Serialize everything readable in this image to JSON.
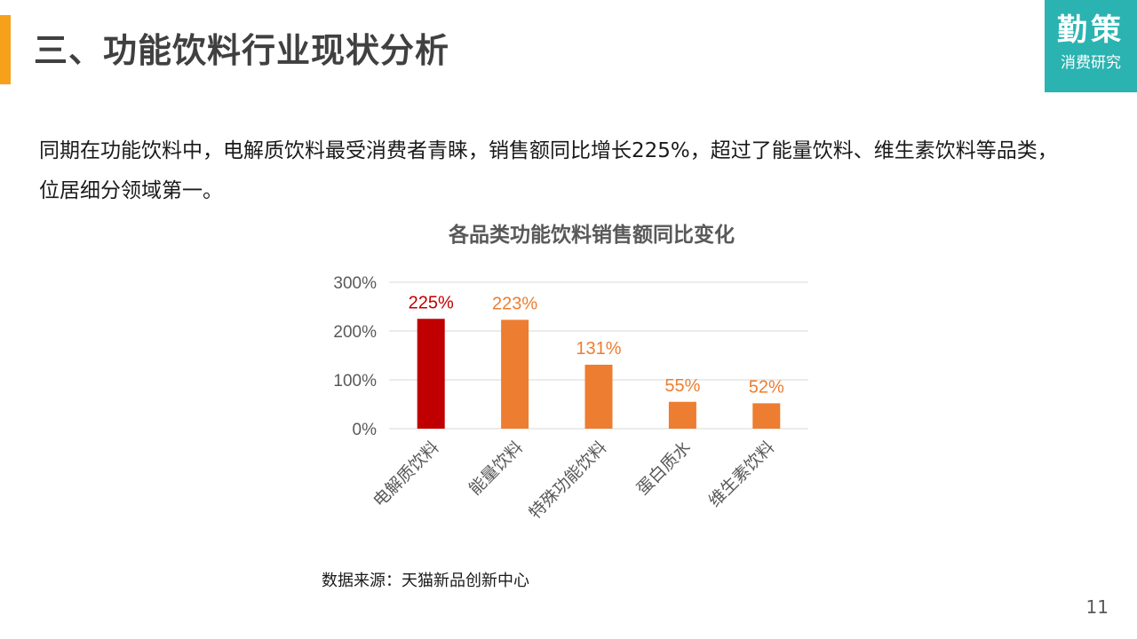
{
  "header": {
    "title": "三、功能饮料行业现状分析",
    "accent_color": "#f7a11a"
  },
  "logo": {
    "main": "勤策",
    "sub": "消费研究",
    "bg_color": "#2bb3b1"
  },
  "body": {
    "paragraph": "同期在功能饮料中，电解质饮料最受消费者青睐，销售额同比增长225%，超过了能量饮料、维生素饮料等品类，位居细分领域第一。"
  },
  "chart_data": {
    "type": "bar",
    "title": "各品类功能饮料销售额同比变化",
    "categories": [
      "电解质饮料",
      "能量饮料",
      "特殊功能饮料",
      "蛋白质水",
      "维生素饮料"
    ],
    "values": [
      225,
      223,
      131,
      55,
      52
    ],
    "data_labels": [
      "225%",
      "223%",
      "131%",
      "55%",
      "52%"
    ],
    "ylim": [
      0,
      300
    ],
    "yticks": [
      0,
      100,
      200,
      300
    ],
    "ytick_labels": [
      "0%",
      "100%",
      "200%",
      "300%"
    ],
    "grid": true,
    "xlabel": "",
    "ylabel": "",
    "colors": [
      "#c00000",
      "#ed7d31",
      "#ed7d31",
      "#ed7d31",
      "#ed7d31"
    ]
  },
  "footer": {
    "source": "数据来源：天猫新品创新中心",
    "page_number": "11"
  }
}
